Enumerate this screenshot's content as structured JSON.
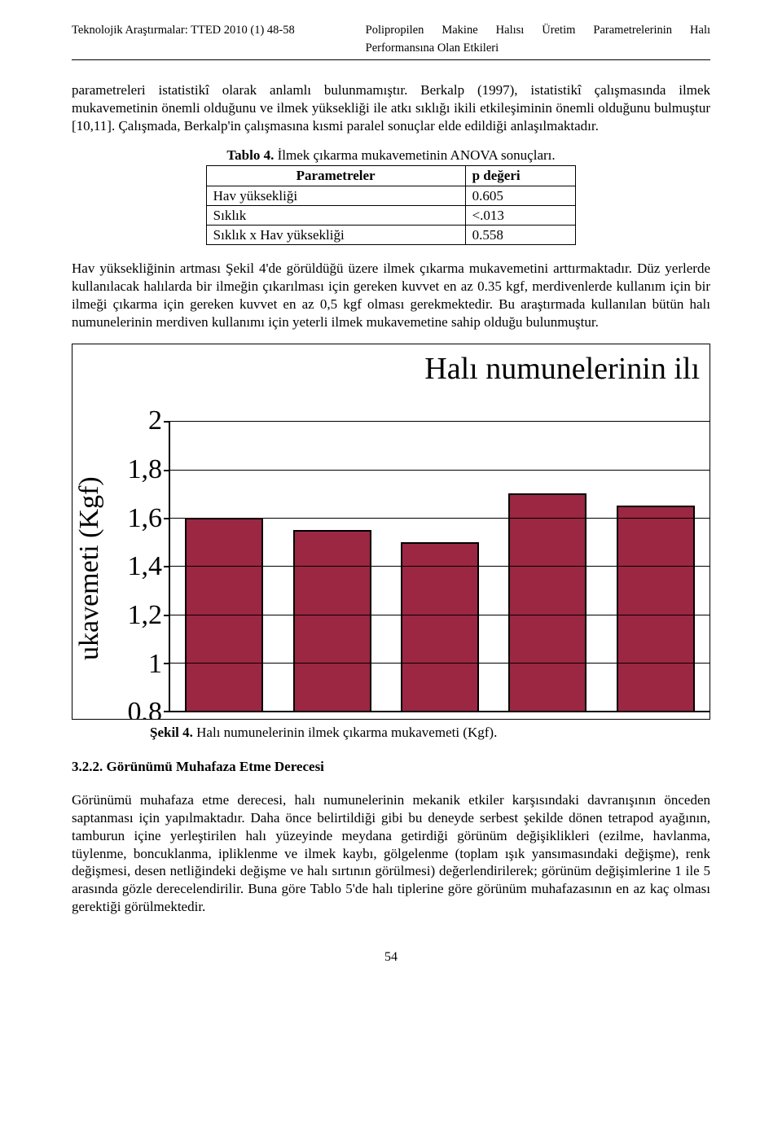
{
  "header": {
    "left": "Teknolojik Araştırmalar: TTED 2010 (1) 48-58",
    "right1": "Polipropilen Makine Halısı Üretim Parametrelerinin Halı",
    "right2": "Performansına Olan Etkileri"
  },
  "para1": "parametreleri istatistikî olarak anlamlı bulunmamıştır. Berkalp (1997), istatistikî çalışmasında ilmek mukavemetinin önemli olduğunu ve ilmek yüksekliği ile atkı sıklığı ikili etkileşiminin önemli olduğunu bulmuştur [10,11]. Çalışmada, Berkalp'in çalışmasına kısmi paralel sonuçlar elde edildiği anlaşılmaktadır.",
  "table4": {
    "caption_bold": "Tablo 4.",
    "caption_rest": " İlmek çıkarma mukavemetinin ANOVA sonuçları.",
    "head_param": "Parametreler",
    "head_p": "p değeri",
    "rows": [
      {
        "param": "Hav yüksekliği",
        "p": "0.605"
      },
      {
        "param": "Sıklık",
        "p": "<.013"
      },
      {
        "param": "Sıklık x Hav yüksekliği",
        "p": "0.558"
      }
    ]
  },
  "para2": "Hav yüksekliğinin artması Şekil 4'de görüldüğü üzere ilmek çıkarma mukavemetini arttırmaktadır. Düz yerlerde kullanılacak halılarda bir ilmeğin çıkarılması için gereken kuvvet en az 0.35 kgf, merdivenlerde kullanım için bir ilmeği çıkarma için gereken kuvvet en az 0,5 kgf olması gerekmektedir. Bu araştırmada kullanılan bütün halı numunelerinin merdiven kullanımı için yeterli ilmek mukavemetine sahip olduğu bulunmuştur.",
  "chart": {
    "type": "bar",
    "title_visible": "Halı numunelerinin ilı",
    "y_label_visible": "ukavemeti (Kgf)",
    "y_ticks": [
      "2",
      "1,8",
      "1,6",
      "1,4",
      "1,2",
      "1",
      "0,8"
    ],
    "y_min": 0.8,
    "y_max": 2.0,
    "values": [
      1.6,
      1.55,
      1.5,
      1.7,
      1.65
    ],
    "bar_color": "#9b2743",
    "bar_border": "#000000",
    "grid_color": "#000000",
    "background": "#ffffff"
  },
  "fig4": {
    "bold": "Şekil 4.",
    "rest": " Halı numunelerinin ilmek çıkarma mukavemeti (Kgf)."
  },
  "subheading": "3.2.2. Görünümü Muhafaza Etme Derecesi",
  "para3": "Görünümü muhafaza etme derecesi, halı numunelerinin mekanik etkiler karşısındaki davranışının önceden saptanması için yapılmaktadır. Daha önce belirtildiği gibi bu deneyde serbest şekilde dönen tetrapod ayağının, tamburun içine yerleştirilen halı yüzeyinde meydana getirdiği görünüm değişiklikleri (ezilme, havlanma, tüylenme, boncuklanma, ipliklenme ve ilmek kaybı, gölgelenme (toplam ışık yansımasındaki değişme), renk değişmesi, desen netliğindeki değişme ve halı sırtının görülmesi) değerlendirilerek; görünüm değişimlerine 1 ile 5 arasında gözle derecelendirilir. Buna göre Tablo 5'de halı tiplerine göre görünüm muhafazasının en az kaç olması gerektiği görülmektedir.",
  "page_number": "54"
}
